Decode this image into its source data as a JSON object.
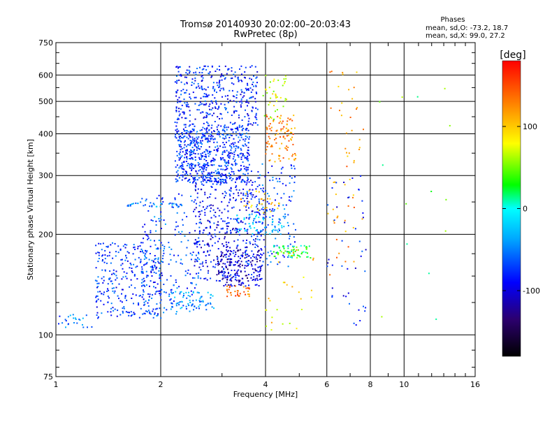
{
  "title": {
    "line1": "Tromsø 20140930 20:02:00–20:03:43",
    "line2": "RwPretec (8p)"
  },
  "stats": {
    "heading": "Phases",
    "line1": "mean, sd,O: -73.2, 18.7",
    "line2": "mean, sd,X:  99.0, 27.2"
  },
  "chart_data": {
    "type": "scatter",
    "title": "Tromsø 20140930 20:02:00–20:03:43",
    "subtitle": "RwPretec (8p)",
    "xlabel": "Frequency [MHz]",
    "ylabel": "Stationary phase Virtual Height [km]",
    "xscale": "log",
    "yscale": "log",
    "xlim": [
      1,
      16
    ],
    "ylim": [
      75,
      750
    ],
    "xticks": [
      1,
      2,
      4,
      6,
      8,
      10,
      16
    ],
    "xtick_labels": [
      "1",
      "2",
      "4",
      "6",
      "8",
      "10",
      "16"
    ],
    "yticks": [
      75,
      100,
      200,
      300,
      400,
      500,
      600,
      750
    ],
    "ytick_labels": [
      "75",
      "100",
      "200",
      "300",
      "400",
      "500",
      "600",
      "750"
    ],
    "grid": true,
    "colorbar": {
      "label": "[deg]",
      "range": [
        -180,
        180
      ],
      "ticks": [
        100,
        0,
        -100
      ],
      "tick_labels": [
        "100",
        "0",
        "-100"
      ],
      "colors": [
        "#000000",
        "#2c006e",
        "#0000ff",
        "#00aaff",
        "#00ffff",
        "#00ff00",
        "#ffff00",
        "#ff9900",
        "#ff0000"
      ]
    },
    "clusters": [
      {
        "x": [
          1.0,
          1.3
        ],
        "y": [
          105,
          118
        ],
        "phase": -55,
        "n": 24
      },
      {
        "x": [
          1.3,
          2.05
        ],
        "y": [
          112,
          190
        ],
        "phase": -75,
        "n": 300
      },
      {
        "x": [
          1.75,
          2.6
        ],
        "y": [
          115,
          265
        ],
        "phase": -65,
        "n": 220
      },
      {
        "x": [
          2.1,
          2.85
        ],
        "y": [
          118,
          135
        ],
        "phase": -45,
        "n": 70
      },
      {
        "x": [
          1.6,
          2.3
        ],
        "y": [
          242,
          248
        ],
        "phase": -45,
        "n": 30
      },
      {
        "x": [
          2.2,
          3.6
        ],
        "y": [
          285,
          420
        ],
        "phase": -75,
        "n": 650
      },
      {
        "x": [
          2.2,
          3.8
        ],
        "y": [
          420,
          640
        ],
        "phase": -80,
        "n": 380
      },
      {
        "x": [
          2.5,
          4.0
        ],
        "y": [
          145,
          300
        ],
        "phase": -90,
        "n": 420
      },
      {
        "x": [
          2.9,
          3.9
        ],
        "y": [
          140,
          180
        ],
        "phase": -110,
        "n": 160
      },
      {
        "x": [
          3.5,
          4.9
        ],
        "y": [
          160,
          330
        ],
        "phase": -65,
        "n": 150
      },
      {
        "x": [
          3.3,
          4.6
        ],
        "y": [
          200,
          230
        ],
        "phase": -25,
        "n": 60
      },
      {
        "x": [
          4.0,
          4.9
        ],
        "y": [
          330,
          460
        ],
        "phase": 130,
        "n": 100
      },
      {
        "x": [
          3.9,
          4.6
        ],
        "y": [
          440,
          600
        ],
        "phase": 70,
        "n": 40
      },
      {
        "x": [
          3.4,
          4.4
        ],
        "y": [
          230,
          270
        ],
        "phase": 110,
        "n": 30
      },
      {
        "x": [
          4.2,
          5.4
        ],
        "y": [
          170,
          185
        ],
        "phase": 30,
        "n": 60
      },
      {
        "x": [
          3.1,
          3.6
        ],
        "y": [
          130,
          140
        ],
        "phase": 140,
        "n": 35
      },
      {
        "x": [
          4.0,
          5.5
        ],
        "y": [
          100,
          180
        ],
        "phase": 90,
        "n": 30
      },
      {
        "x": [
          6.0,
          7.8
        ],
        "y": [
          150,
          620
        ],
        "phase": 120,
        "n": 55
      },
      {
        "x": [
          6.0,
          7.8
        ],
        "y": [
          105,
          300
        ],
        "phase": -85,
        "n": 45
      },
      {
        "x": [
          8.5,
          14.5
        ],
        "y": [
          105,
          600
        ],
        "phase": 40,
        "n": 14
      }
    ]
  }
}
